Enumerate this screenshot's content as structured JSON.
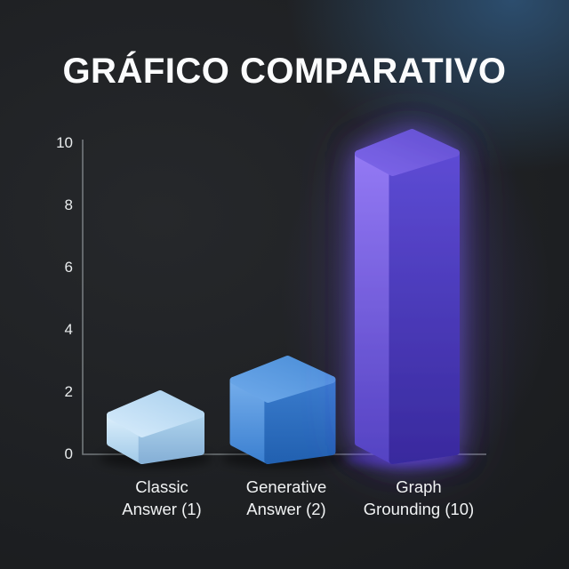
{
  "title": "GRÁFICO COMPARATIVO",
  "colors": {
    "background_base": "#1e2023",
    "background_top_right_glow": "#2d5072",
    "purple_ambient_glow": "#7054ec",
    "axis": "#83888c",
    "tick_text": "#e9eced",
    "label_text": "#f1f3f4",
    "title_text": "#fbfcfd"
  },
  "chart_data": {
    "type": "bar",
    "style": "3d-clay-bars",
    "title": "GRÁFICO COMPARATIVO",
    "xlabel": "",
    "ylabel": "",
    "categories": [
      "Classic Answer (1)",
      "Generative Answer (2)",
      "Graph Grounding (10)"
    ],
    "category_lines": [
      [
        "Classic",
        "Answer (1)"
      ],
      [
        "Generative",
        "Answer (2)"
      ],
      [
        "Graph",
        "Grounding (10)"
      ]
    ],
    "values": [
      1,
      2,
      10
    ],
    "ylim": [
      0,
      10
    ],
    "yticks": [
      0,
      2,
      4,
      6,
      8,
      10
    ],
    "grid": false,
    "legend": false,
    "bar_colors": [
      {
        "name": "light-blue",
        "top": [
          "#d6ebfb",
          "#abd1ee"
        ],
        "left": [
          "#dceffc",
          "#a4cce9"
        ],
        "right": [
          "#aed3ed",
          "#87b1d7"
        ],
        "shadow": "#000000"
      },
      {
        "name": "blue",
        "top": [
          "#6ea9ea",
          "#4b8ed8"
        ],
        "left": [
          "#74adeb",
          "#3d81d1"
        ],
        "right": [
          "#3a7ccd",
          "#2261b1"
        ],
        "shadow": "#000000"
      },
      {
        "name": "purple",
        "top": [
          "#7d66e9",
          "#6450d2"
        ],
        "left": [
          "#9379f4",
          "#5543c3"
        ],
        "right": [
          "#5d4bd4",
          "#392a9e"
        ],
        "glow": "#7b5cff",
        "shadow": "#4c2fd0"
      }
    ]
  }
}
